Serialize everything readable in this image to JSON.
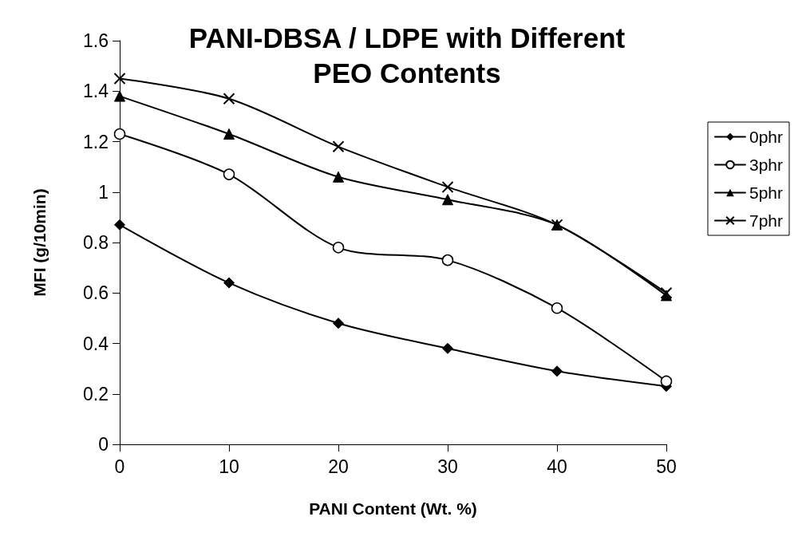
{
  "chart_data": {
    "type": "line",
    "title": "PANI-DBSA / LDPE with Different\nPEO Contents",
    "xlabel": "PANI Content (Wt. %)",
    "ylabel": "MFI (g/10min)",
    "x": [
      0,
      10,
      20,
      30,
      40,
      50
    ],
    "series": [
      {
        "name": "0phr",
        "color": "#000000",
        "marker": "diamond",
        "values": [
          0.87,
          0.64,
          0.48,
          0.38,
          0.29,
          0.23
        ]
      },
      {
        "name": "3phr",
        "color": "#000000",
        "marker": "circle",
        "values": [
          1.23,
          1.07,
          0.78,
          0.73,
          0.54,
          0.25
        ]
      },
      {
        "name": "5phr",
        "color": "#000000",
        "marker": "triangle",
        "values": [
          1.38,
          1.23,
          1.06,
          0.97,
          0.87,
          0.59
        ]
      },
      {
        "name": "7phr",
        "color": "#000000",
        "marker": "cross",
        "values": [
          1.45,
          1.37,
          1.18,
          1.02,
          0.87,
          0.6
        ]
      }
    ],
    "xlim": [
      0,
      50
    ],
    "xticks": [
      0,
      10,
      20,
      30,
      40,
      50
    ],
    "ylim": [
      0,
      1.6
    ],
    "yticks": [
      0,
      0.2,
      0.4,
      0.6,
      0.8,
      1,
      1.2,
      1.4,
      1.6
    ],
    "grid": false,
    "legend": "right",
    "line_style": "solid"
  }
}
